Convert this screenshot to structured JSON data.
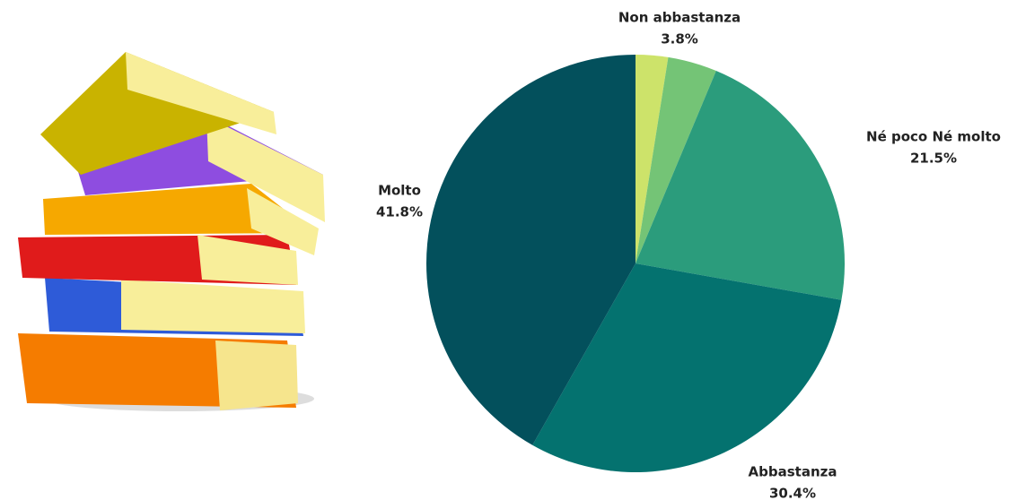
{
  "chart_data": {
    "type": "pie",
    "categories": [
      null,
      "Non abbastanza",
      "Né poco Né molto",
      "Abbastanza",
      "Molto"
    ],
    "values": [
      2.5,
      3.8,
      21.5,
      30.4,
      41.8
    ],
    "value_labels": [
      null,
      "3.8%",
      "21.5%",
      "30.4%",
      "41.8%"
    ],
    "colors": [
      "#cde36a",
      "#74c476",
      "#2b9c7c",
      "#04726f",
      "#03505c"
    ]
  }
}
